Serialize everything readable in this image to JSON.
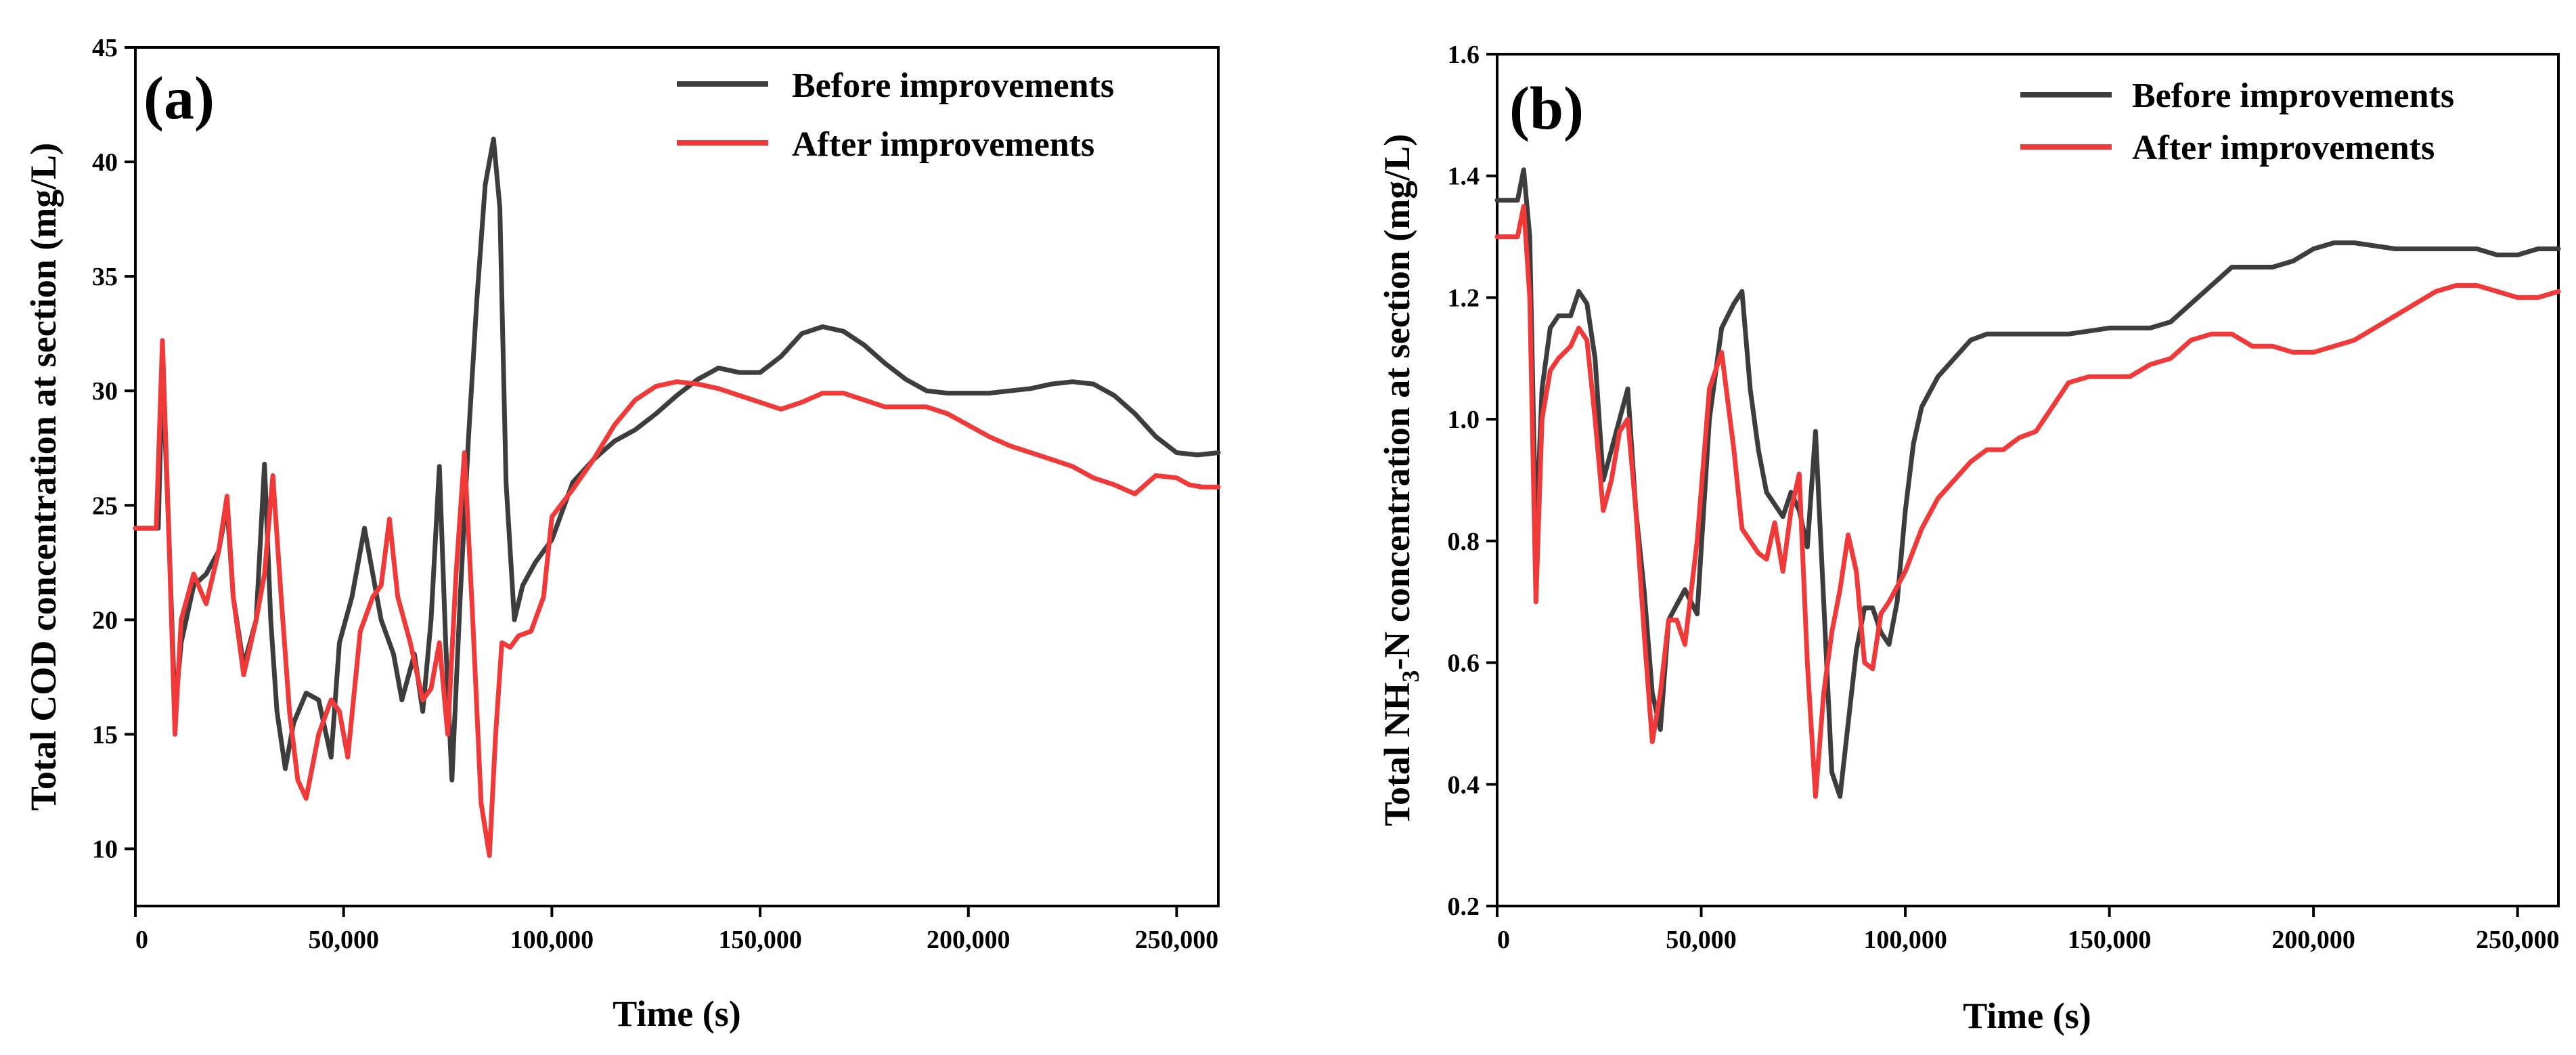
{
  "chart_data": [
    {
      "type": "line",
      "panel_label": "(a)",
      "xlabel": "Time (s)",
      "ylabel": "Total COD concentration at section (mg/L)",
      "xlim": [
        0,
        260000
      ],
      "ylim": [
        7.5,
        45
      ],
      "xticks": [
        0,
        50000,
        100000,
        150000,
        200000,
        250000
      ],
      "xtick_labels": [
        "0",
        "50,000",
        "100,000",
        "150,000",
        "200,000",
        "250,000"
      ],
      "yticks": [
        10,
        15,
        20,
        25,
        30,
        35,
        40,
        45
      ],
      "ytick_labels": [
        "10",
        "15",
        "20",
        "25",
        "30",
        "35",
        "40",
        "45"
      ],
      "legend_position": "top-right",
      "series": [
        {
          "name": "Before improvements",
          "color": "#3d3d3d",
          "x": [
            0,
            5500,
            6500,
            8000,
            9500,
            11000,
            14000,
            17000,
            20000,
            22000,
            23500,
            26000,
            29000,
            31000,
            32500,
            34000,
            36000,
            38000,
            41000,
            44000,
            47000,
            49000,
            52000,
            55000,
            57000,
            59000,
            62000,
            64000,
            67000,
            69000,
            71000,
            73000,
            74500,
            76000,
            78000,
            80000,
            82000,
            84000,
            86000,
            87500,
            89000,
            91000,
            93000,
            96000,
            100000,
            105000,
            110000,
            115000,
            120000,
            125000,
            130000,
            135000,
            140000,
            145000,
            150000,
            155000,
            160000,
            165000,
            170000,
            175000,
            180000,
            185000,
            190000,
            195000,
            200000,
            205000,
            210000,
            215000,
            220000,
            225000,
            230000,
            235000,
            240000,
            245000,
            250000,
            255000,
            260000
          ],
          "y": [
            24,
            24,
            31,
            24,
            16,
            19,
            21.5,
            22,
            23,
            25,
            21,
            18,
            20,
            26.8,
            20,
            16,
            13.5,
            15.5,
            16.8,
            16.5,
            14,
            19,
            21,
            24,
            22,
            20,
            18.5,
            16.5,
            18.5,
            16,
            20,
            26.7,
            19,
            13,
            21,
            28,
            34,
            39,
            41,
            38,
            26,
            20,
            21.5,
            22.5,
            23.5,
            26,
            27,
            27.8,
            28.3,
            29,
            29.8,
            30.5,
            31,
            30.8,
            30.8,
            31.5,
            32.5,
            32.8,
            32.6,
            32,
            31.2,
            30.5,
            30,
            29.9,
            29.9,
            29.9,
            30,
            30.1,
            30.3,
            30.4,
            30.3,
            29.8,
            29,
            28,
            27.3,
            27.2,
            27.3
          ]
        },
        {
          "name": "After improvements",
          "color": "#f03a3a",
          "x": [
            0,
            5000,
            6500,
            8000,
            9500,
            11000,
            14000,
            17000,
            20000,
            22000,
            23500,
            26000,
            29000,
            31000,
            33000,
            35000,
            37000,
            39000,
            41000,
            44000,
            47000,
            49000,
            51000,
            54000,
            57000,
            59000,
            61000,
            63000,
            66000,
            69000,
            71000,
            73000,
            75000,
            77000,
            79000,
            81000,
            83000,
            85000,
            86500,
            88000,
            90000,
            92000,
            95000,
            98000,
            100000,
            105000,
            110000,
            115000,
            120000,
            125000,
            130000,
            135000,
            140000,
            145000,
            150000,
            155000,
            160000,
            165000,
            170000,
            175000,
            180000,
            185000,
            190000,
            195000,
            200000,
            205000,
            210000,
            215000,
            220000,
            225000,
            230000,
            235000,
            240000,
            245000,
            250000,
            253000,
            256000,
            260000
          ],
          "y": [
            24,
            24,
            32.2,
            24,
            15,
            20,
            22,
            20.7,
            23,
            25.4,
            21,
            17.6,
            20,
            22,
            26.3,
            21,
            16,
            13,
            12.2,
            15,
            16.5,
            16,
            14,
            19.5,
            21,
            21.5,
            24.4,
            21,
            19,
            16.5,
            17,
            19,
            15,
            22,
            27.3,
            20,
            12,
            9.7,
            15,
            19,
            18.8,
            19.3,
            19.5,
            21,
            24.5,
            25.7,
            27,
            28.5,
            29.6,
            30.2,
            30.4,
            30.3,
            30.1,
            29.8,
            29.5,
            29.2,
            29.5,
            29.9,
            29.9,
            29.6,
            29.3,
            29.3,
            29.3,
            29,
            28.5,
            28,
            27.6,
            27.3,
            27,
            26.7,
            26.2,
            25.9,
            25.5,
            26.3,
            26.2,
            25.9,
            25.8,
            25.8
          ]
        }
      ]
    },
    {
      "type": "line",
      "panel_label": "(b)",
      "xlabel": "Time (s)",
      "ylabel_main": "Total NH",
      "ylabel_sub": "3",
      "ylabel_rest": "-N concentration at section (mg/L)",
      "xlim": [
        0,
        260000
      ],
      "ylim": [
        0.2,
        1.6
      ],
      "xticks": [
        0,
        50000,
        100000,
        150000,
        200000,
        250000
      ],
      "xtick_labels": [
        "0",
        "50,000",
        "100,000",
        "150,000",
        "200,000",
        "250,000"
      ],
      "yticks": [
        0.2,
        0.4,
        0.6,
        0.8,
        1.0,
        1.2,
        1.4,
        1.6
      ],
      "ytick_labels": [
        "0.2",
        "0.4",
        "0.6",
        "0.8",
        "1.0",
        "1.2",
        "1.4",
        "1.6"
      ],
      "legend_position": "top-right",
      "series": [
        {
          "name": "Before improvements",
          "color": "#3d3d3d",
          "x": [
            0,
            5000,
            6500,
            8000,
            9500,
            11000,
            13000,
            15000,
            18000,
            20000,
            22000,
            24000,
            26000,
            28000,
            30000,
            32000,
            34000,
            36000,
            38000,
            40000,
            42000,
            46000,
            49000,
            52000,
            55000,
            58000,
            60000,
            62000,
            64000,
            66000,
            68000,
            70000,
            72000,
            74000,
            76000,
            78000,
            80000,
            82000,
            84000,
            86000,
            88000,
            90000,
            92000,
            94000,
            96000,
            98000,
            100000,
            102000,
            104000,
            108000,
            112000,
            116000,
            120000,
            130000,
            140000,
            150000,
            160000,
            165000,
            170000,
            175000,
            180000,
            190000,
            195000,
            200000,
            205000,
            210000,
            220000,
            230000,
            240000,
            245000,
            250000,
            255000,
            260000
          ],
          "y": [
            1.36,
            1.36,
            1.41,
            1.3,
            0.8,
            1.05,
            1.15,
            1.17,
            1.17,
            1.21,
            1.19,
            1.1,
            0.9,
            0.95,
            1.0,
            1.05,
            0.85,
            0.72,
            0.55,
            0.49,
            0.67,
            0.72,
            0.68,
            1.0,
            1.15,
            1.19,
            1.21,
            1.05,
            0.95,
            0.88,
            0.86,
            0.84,
            0.88,
            0.85,
            0.79,
            0.98,
            0.7,
            0.42,
            0.38,
            0.5,
            0.62,
            0.69,
            0.69,
            0.65,
            0.63,
            0.7,
            0.85,
            0.96,
            1.02,
            1.07,
            1.1,
            1.13,
            1.14,
            1.14,
            1.14,
            1.15,
            1.15,
            1.16,
            1.19,
            1.22,
            1.25,
            1.25,
            1.26,
            1.28,
            1.29,
            1.29,
            1.28,
            1.28,
            1.28,
            1.27,
            1.27,
            1.28,
            1.28
          ]
        },
        {
          "name": "After improvements",
          "color": "#f03a3a",
          "x": [
            0,
            5000,
            6500,
            8000,
            9500,
            11000,
            13000,
            15000,
            18000,
            20000,
            22000,
            24000,
            26000,
            28000,
            30000,
            32000,
            34000,
            36000,
            38000,
            40000,
            42000,
            44000,
            46000,
            49000,
            52000,
            55000,
            58000,
            60000,
            62000,
            64000,
            66000,
            68000,
            70000,
            72000,
            74000,
            76000,
            78000,
            80000,
            82000,
            84000,
            86000,
            88000,
            90000,
            92000,
            94000,
            96000,
            100000,
            104000,
            108000,
            112000,
            116000,
            120000,
            124000,
            128000,
            132000,
            136000,
            140000,
            145000,
            150000,
            155000,
            160000,
            165000,
            170000,
            175000,
            180000,
            185000,
            190000,
            195000,
            200000,
            205000,
            210000,
            215000,
            220000,
            225000,
            230000,
            235000,
            240000,
            245000,
            250000,
            255000,
            260000
          ],
          "y": [
            1.3,
            1.3,
            1.35,
            1.2,
            0.7,
            1.0,
            1.08,
            1.1,
            1.12,
            1.15,
            1.13,
            1.0,
            0.85,
            0.9,
            0.98,
            1.0,
            0.85,
            0.65,
            0.47,
            0.55,
            0.67,
            0.67,
            0.63,
            0.8,
            1.05,
            1.11,
            0.95,
            0.82,
            0.8,
            0.78,
            0.77,
            0.83,
            0.75,
            0.85,
            0.91,
            0.6,
            0.38,
            0.55,
            0.65,
            0.72,
            0.81,
            0.75,
            0.6,
            0.59,
            0.68,
            0.7,
            0.75,
            0.82,
            0.87,
            0.9,
            0.93,
            0.95,
            0.95,
            0.97,
            0.98,
            1.02,
            1.06,
            1.07,
            1.07,
            1.07,
            1.09,
            1.1,
            1.13,
            1.14,
            1.14,
            1.12,
            1.12,
            1.11,
            1.11,
            1.12,
            1.13,
            1.15,
            1.17,
            1.19,
            1.21,
            1.22,
            1.22,
            1.21,
            1.2,
            1.2,
            1.21
          ]
        }
      ]
    }
  ]
}
